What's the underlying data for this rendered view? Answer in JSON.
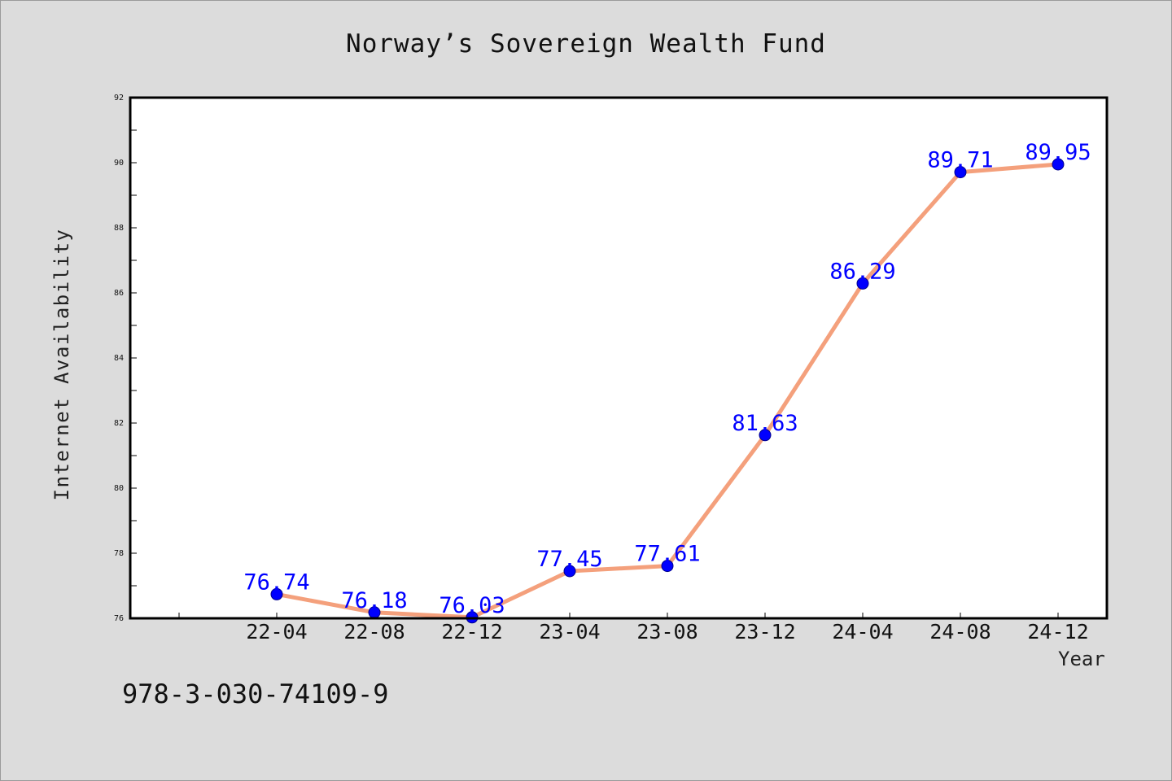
{
  "chart_data": {
    "type": "line",
    "title": "Norway’s Sovereign Wealth Fund",
    "xlabel": "Year",
    "ylabel": "Internet Availability",
    "categories": [
      "22-04",
      "22-08",
      "22-12",
      "23-04",
      "23-08",
      "23-12",
      "24-04",
      "24-08",
      "24-12"
    ],
    "series": [
      {
        "values": [
          76.74,
          76.18,
          76.03,
          77.45,
          77.61,
          81.63,
          86.29,
          89.71,
          89.95
        ],
        "labels": [
          "76.74",
          "76.18",
          "76.03",
          "77.45",
          "77.61",
          "81.63",
          "86.29",
          "89.71",
          "89.95"
        ]
      }
    ],
    "ylim": [
      76,
      92
    ],
    "yticks": [
      76,
      78,
      80,
      82,
      84,
      86,
      88,
      90,
      92
    ],
    "grid": false,
    "legend": "none",
    "colors": {
      "line": "#f4a07c",
      "marker": "#0000ff",
      "marker_edge": "#00008b",
      "data_label": "#0000ff",
      "background": "#dcdcdc",
      "plot_background": "#ffffff"
    }
  },
  "annotation": {
    "text": "978-3-030-74109-9"
  }
}
